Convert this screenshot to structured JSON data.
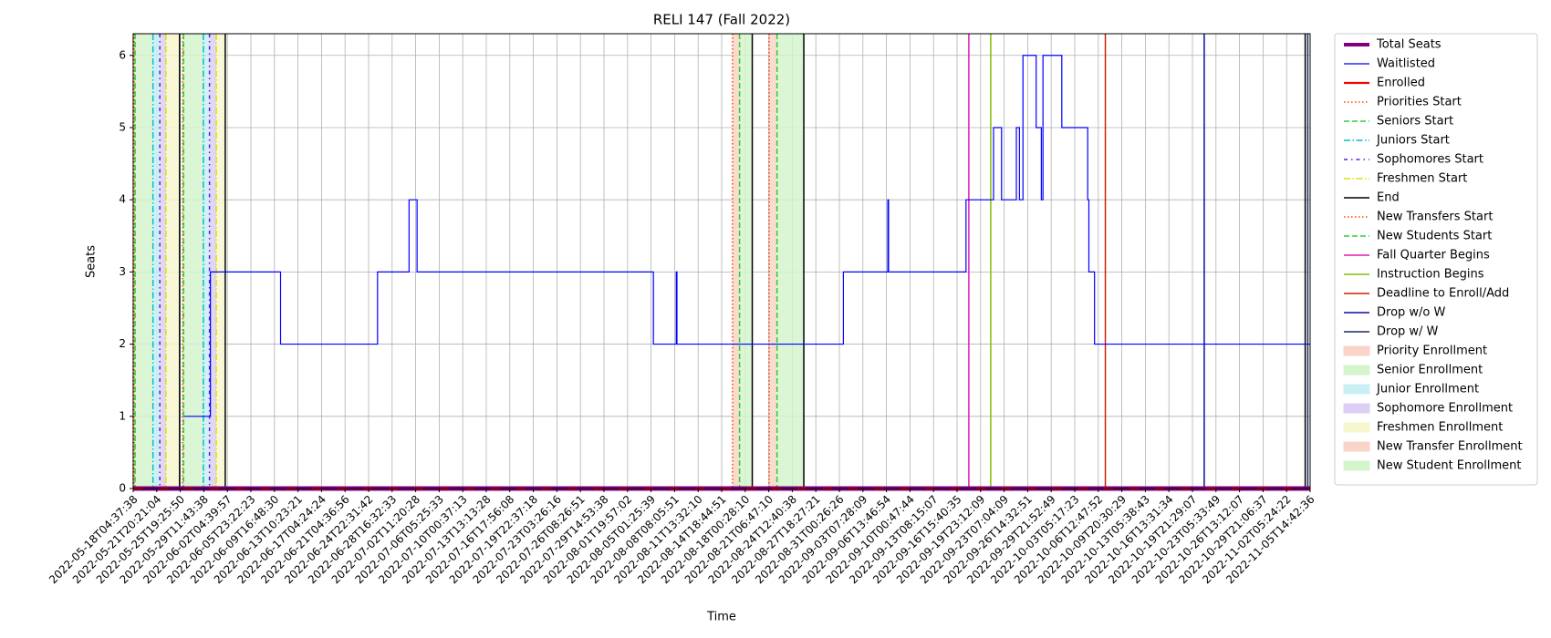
{
  "chart_data": {
    "type": "line",
    "title": "RELI 147 (Fall 2022)",
    "x_label": "Time",
    "y_label": "Seats",
    "xlim": [
      0,
      50
    ],
    "ylim": [
      0,
      6.3
    ],
    "yticks": [
      0,
      1,
      2,
      3,
      4,
      5,
      6
    ],
    "grid": true,
    "step": true,
    "legend": "outside right",
    "xticks": [
      {
        "value": 0,
        "label": "2022-05-18T04:37:38"
      },
      {
        "value": 1,
        "label": "2022-05-21T20:21:04"
      },
      {
        "value": 2,
        "label": "2022-05-25T19:25:50"
      },
      {
        "value": 3,
        "label": "2022-05-29T11:43:38"
      },
      {
        "value": 4,
        "label": "2022-06-02T04:39:57"
      },
      {
        "value": 5,
        "label": "2022-06-05T23:22:23"
      },
      {
        "value": 6,
        "label": "2022-06-09T16:48:30"
      },
      {
        "value": 7,
        "label": "2022-06-13T10:23:21"
      },
      {
        "value": 8,
        "label": "2022-06-17T04:24:24"
      },
      {
        "value": 9,
        "label": "2022-06-21T04:36:56"
      },
      {
        "value": 10,
        "label": "2022-06-24T22:31:42"
      },
      {
        "value": 11,
        "label": "2022-06-28T16:32:33"
      },
      {
        "value": 12,
        "label": "2022-07-02T11:20:28"
      },
      {
        "value": 13,
        "label": "2022-07-06T05:25:33"
      },
      {
        "value": 14,
        "label": "2022-07-10T00:37:13"
      },
      {
        "value": 15,
        "label": "2022-07-13T13:13:28"
      },
      {
        "value": 16,
        "label": "2022-07-16T17:56:08"
      },
      {
        "value": 17,
        "label": "2022-07-19T22:37:18"
      },
      {
        "value": 18,
        "label": "2022-07-23T03:26:16"
      },
      {
        "value": 19,
        "label": "2022-07-26T08:26:51"
      },
      {
        "value": 20,
        "label": "2022-07-29T14:53:38"
      },
      {
        "value": 21,
        "label": "2022-08-01T19:57:02"
      },
      {
        "value": 22,
        "label": "2022-08-05T01:25:39"
      },
      {
        "value": 23,
        "label": "2022-08-08T08:05:51"
      },
      {
        "value": 24,
        "label": "2022-08-11T13:32:10"
      },
      {
        "value": 25,
        "label": "2022-08-14T18:44:51"
      },
      {
        "value": 26,
        "label": "2022-08-18T00:28:10"
      },
      {
        "value": 27,
        "label": "2022-08-21T06:47:10"
      },
      {
        "value": 28,
        "label": "2022-08-24T12:40:38"
      },
      {
        "value": 29,
        "label": "2022-08-27T18:27:21"
      },
      {
        "value": 30,
        "label": "2022-08-31T00:26:26"
      },
      {
        "value": 31,
        "label": "2022-09-03T07:28:09"
      },
      {
        "value": 32,
        "label": "2022-09-06T13:46:54"
      },
      {
        "value": 33,
        "label": "2022-09-10T00:47:44"
      },
      {
        "value": 34,
        "label": "2022-09-13T08:15:07"
      },
      {
        "value": 35,
        "label": "2022-09-16T15:40:35"
      },
      {
        "value": 36,
        "label": "2022-09-19T23:12:09"
      },
      {
        "value": 37,
        "label": "2022-09-23T07:04:09"
      },
      {
        "value": 38,
        "label": "2022-09-26T14:32:51"
      },
      {
        "value": 39,
        "label": "2022-09-29T21:52:49"
      },
      {
        "value": 40,
        "label": "2022-10-03T05:17:23"
      },
      {
        "value": 41,
        "label": "2022-10-06T12:47:52"
      },
      {
        "value": 42,
        "label": "2022-10-09T20:30:29"
      },
      {
        "value": 43,
        "label": "2022-10-13T05:38:43"
      },
      {
        "value": 44,
        "label": "2022-10-16T13:31:34"
      },
      {
        "value": 45,
        "label": "2022-10-19T21:29:07"
      },
      {
        "value": 46,
        "label": "2022-10-23T05:33:49"
      },
      {
        "value": 47,
        "label": "2022-10-26T13:12:07"
      },
      {
        "value": 48,
        "label": "2022-10-29T21:06:37"
      },
      {
        "value": 49,
        "label": "2022-11-02T05:24:22"
      },
      {
        "value": 50,
        "label": "2022-11-05T14:42:36"
      }
    ],
    "series": [
      {
        "name": "Total Seats",
        "color": "#800080",
        "width": 5,
        "x": [
          0,
          50
        ],
        "values": [
          0,
          0
        ]
      },
      {
        "name": "Waitlisted",
        "color": "#0000ff",
        "width": 1.2,
        "x": [
          2.14,
          3.24,
          3.28,
          6.26,
          10.38,
          11.72,
          12.06,
          22.1,
          23.07,
          23.1,
          30.17,
          32.06,
          32.09,
          35.38,
          36.55,
          36.89,
          37.52,
          37.65,
          37.8,
          38.36,
          38.58,
          38.65,
          39.45,
          40.55,
          40.6,
          40.84,
          50
        ],
        "values": [
          1,
          1,
          3,
          2,
          3,
          4,
          3,
          2,
          3,
          2,
          3,
          4,
          3,
          4,
          5,
          4,
          5,
          4,
          6,
          5,
          4,
          6,
          5,
          4,
          3,
          2,
          2
        ]
      },
      {
        "name": "Enrolled",
        "color": "#ff0000",
        "width": 2.2,
        "dash": true,
        "x": [
          0,
          50
        ],
        "values": [
          0,
          0
        ]
      }
    ],
    "events": [
      {
        "name": "Priorities Start",
        "color": "#ff4500",
        "style": "dotted",
        "x": [
          0.04,
          2.1,
          25.46,
          0
        ]
      },
      {
        "name": "Seniors Start",
        "color": "#32cd32",
        "style": "dashed",
        "x": [
          0.08,
          2.14,
          25.76
        ]
      },
      {
        "name": "Juniors Start",
        "color": "#00bcd4",
        "style": "dashdot",
        "x": [
          0.84,
          2.98
        ]
      },
      {
        "name": "Sophomores Start",
        "color": "#5a1ae6",
        "style": "dashdot2",
        "x": [
          1.13,
          3.24
        ]
      },
      {
        "name": "Freshmen Start",
        "color": "#e0e000",
        "style": "dashdot",
        "x": [
          1.39,
          3.53
        ]
      },
      {
        "name": "End",
        "color": "#000000",
        "style": "solid",
        "x": [
          1.97,
          3.91,
          26.3,
          28.49,
          49.79
        ]
      },
      {
        "name": "New Transfers Start",
        "color": "#ff4500",
        "style": "dotted",
        "x": [
          27.02
        ]
      },
      {
        "name": "New Students Start",
        "color": "#32cd32",
        "style": "dashed",
        "x": [
          27.35
        ]
      },
      {
        "name": "Fall Quarter Begins",
        "color": "#e619b4",
        "style": "solid",
        "x": [
          35.5
        ]
      },
      {
        "name": "Instruction Begins",
        "color": "#80bf00",
        "style": "solid",
        "x": [
          36.43
        ]
      },
      {
        "name": "Deadline to Enroll/Add",
        "color": "#cc2200",
        "style": "solid",
        "x": [
          41.3
        ]
      },
      {
        "name": "Drop w/o W",
        "color": "#0d0da0",
        "style": "solid",
        "x": [
          45.5
        ]
      },
      {
        "name": "Drop w/ W",
        "color": "#1a2a5a",
        "style": "solid",
        "x": [
          49.9
        ]
      }
    ],
    "periods": [
      {
        "name": "Priority Enrollment",
        "color": "#f8d5c8",
        "ranges": [
          [
            0.04,
            0.08
          ],
          [
            2.1,
            2.14
          ],
          [
            25.46,
            25.76
          ]
        ]
      },
      {
        "name": "Senior Enrollment",
        "color": "#d4f5cc",
        "ranges": [
          [
            0.08,
            0.84
          ],
          [
            2.14,
            2.98
          ],
          [
            25.76,
            26.3
          ]
        ]
      },
      {
        "name": "Junior Enrollment",
        "color": "#c8f0f4",
        "ranges": [
          [
            0.84,
            1.13
          ],
          [
            2.98,
            3.24
          ]
        ]
      },
      {
        "name": "Sophomore Enrollment",
        "color": "#dccff5",
        "ranges": [
          [
            1.13,
            1.39
          ],
          [
            3.24,
            3.53
          ]
        ]
      },
      {
        "name": "Freshmen Enrollment",
        "color": "#f7f7cf",
        "ranges": [
          [
            1.39,
            1.97
          ],
          [
            3.53,
            3.91
          ]
        ]
      },
      {
        "name": "New Transfer Enrollment",
        "color": "#f8d5c8",
        "ranges": [
          [
            27.02,
            27.35
          ]
        ]
      },
      {
        "name": "New Student Enrollment",
        "color": "#d4f5cc",
        "ranges": [
          [
            27.35,
            28.49
          ]
        ]
      }
    ]
  }
}
